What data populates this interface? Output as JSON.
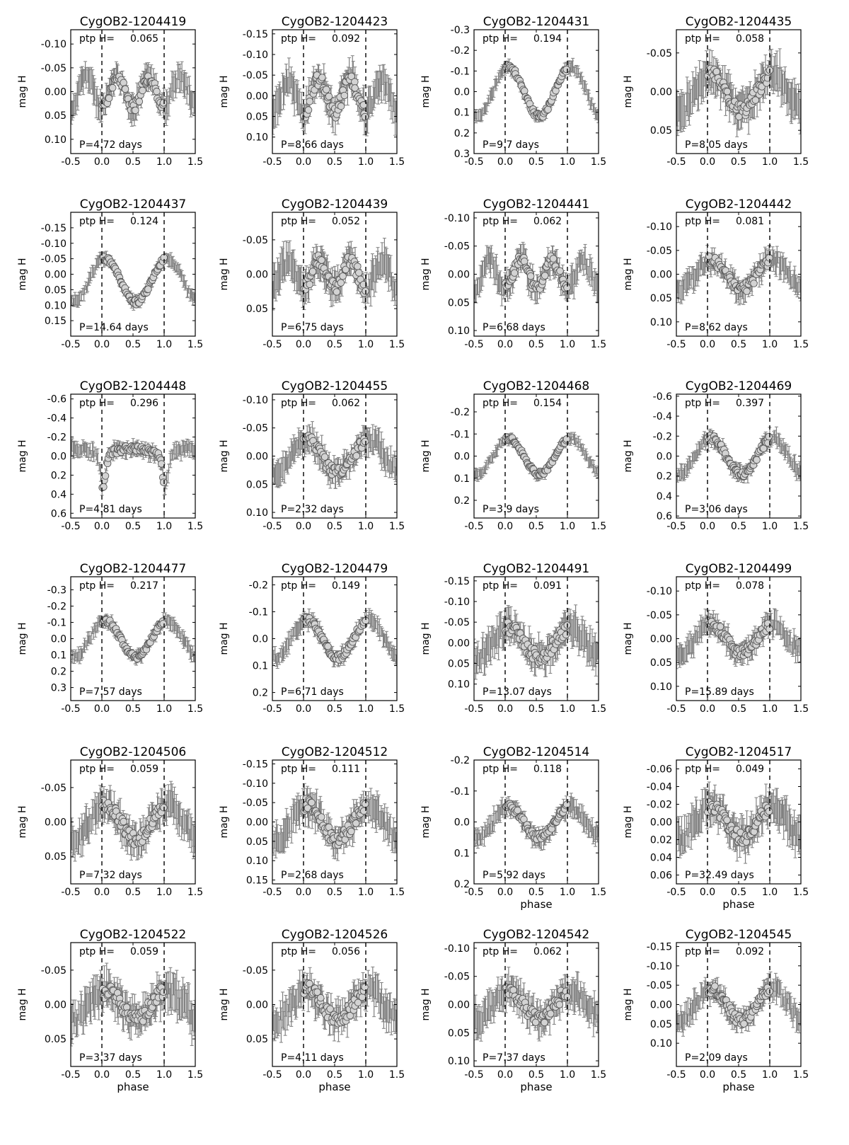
{
  "chart_data": [
    {
      "type": "scatter",
      "title": "CygOB2-1204419",
      "ptp_label": "ptp H=",
      "ptp_value": "0.065",
      "period_label": "P=4.72 days",
      "ylabel": "mag H",
      "xlabel": "",
      "ylim": [
        -0.13,
        0.13
      ],
      "yticks": [
        "-0.10",
        "-0.05",
        "0.00",
        "0.05",
        "0.10"
      ],
      "yvals": [
        -0.1,
        -0.05,
        0.0,
        0.05,
        0.1
      ],
      "shape": "double",
      "amp": 0.032,
      "center": 0.0,
      "scatter": 0.014
    },
    {
      "type": "scatter",
      "title": "CygOB2-1204423",
      "ptp_label": "ptp H=",
      "ptp_value": "0.092",
      "period_label": "P=8.66 days",
      "ylabel": "mag H",
      "xlabel": "",
      "ylim": [
        -0.16,
        0.14
      ],
      "yticks": [
        "-0.15",
        "-0.10",
        "-0.05",
        "0.00",
        "0.05",
        "0.10"
      ],
      "yvals": [
        -0.15,
        -0.1,
        -0.05,
        0.0,
        0.05,
        0.1
      ],
      "shape": "double",
      "amp": 0.04,
      "center": 0.0,
      "scatter": 0.02
    },
    {
      "type": "scatter",
      "title": "CygOB2-1204431",
      "ptp_label": "ptp H=",
      "ptp_value": "0.194",
      "period_label": "P=9.7 days",
      "ylabel": "mag H",
      "xlabel": "",
      "ylim": [
        -0.3,
        0.3
      ],
      "yticks": [
        "-0.3",
        "-0.2",
        "-0.1",
        "0.0",
        "0.1",
        "0.2",
        "0.3"
      ],
      "yvals": [
        -0.3,
        -0.2,
        -0.1,
        0.0,
        0.1,
        0.2,
        0.3
      ],
      "shape": "single",
      "amp": 0.12,
      "center": 0.0,
      "scatter": 0.015
    },
    {
      "type": "scatter",
      "title": "CygOB2-1204435",
      "ptp_label": "ptp H=",
      "ptp_value": "0.058",
      "period_label": "P=8.05 days",
      "ylabel": "mag H",
      "xlabel": "",
      "ylim": [
        -0.08,
        0.08
      ],
      "yticks": [
        "-0.05",
        "0.00",
        "0.05"
      ],
      "yvals": [
        -0.05,
        0.0,
        0.05
      ],
      "shape": "single",
      "amp": 0.025,
      "center": 0.0,
      "scatter": 0.012
    },
    {
      "type": "scatter",
      "title": "CygOB2-1204437",
      "ptp_label": "ptp H=",
      "ptp_value": "0.124",
      "period_label": "P=14.64 days",
      "ylabel": "mag H",
      "xlabel": "",
      "ylim": [
        -0.2,
        0.2
      ],
      "yticks": [
        "-0.15",
        "-0.10",
        "-0.05",
        "0.00",
        "0.05",
        "0.10",
        "0.15"
      ],
      "yvals": [
        -0.15,
        -0.1,
        -0.05,
        0.0,
        0.05,
        0.1,
        0.15
      ],
      "shape": "single",
      "amp": 0.07,
      "center": 0.02,
      "scatter": 0.01
    },
    {
      "type": "scatter",
      "title": "CygOB2-1204439",
      "ptp_label": "ptp H=",
      "ptp_value": "0.052",
      "period_label": "P=6.75 days",
      "ylabel": "mag H",
      "xlabel": "",
      "ylim": [
        -0.09,
        0.09
      ],
      "yticks": [
        "-0.05",
        "0.00",
        "0.05"
      ],
      "yvals": [
        -0.05,
        0.0,
        0.05
      ],
      "shape": "double",
      "amp": 0.02,
      "center": 0.0,
      "scatter": 0.012
    },
    {
      "type": "scatter",
      "title": "CygOB2-1204441",
      "ptp_label": "ptp H=",
      "ptp_value": "0.062",
      "period_label": "P=6.68 days",
      "ylabel": "mag H",
      "xlabel": "",
      "ylim": [
        -0.11,
        0.11
      ],
      "yticks": [
        "-0.10",
        "-0.05",
        "0.00",
        "0.05",
        "0.10"
      ],
      "yvals": [
        -0.1,
        -0.05,
        0.0,
        0.05,
        0.1
      ],
      "shape": "double",
      "amp": 0.025,
      "center": 0.0,
      "scatter": 0.012
    },
    {
      "type": "scatter",
      "title": "CygOB2-1204442",
      "ptp_label": "ptp H=",
      "ptp_value": "0.081",
      "period_label": "P=8.62 days",
      "ylabel": "mag H",
      "xlabel": "",
      "ylim": [
        -0.13,
        0.13
      ],
      "yticks": [
        "-0.10",
        "-0.05",
        "0.00",
        "0.05",
        "0.10"
      ],
      "yvals": [
        -0.1,
        -0.05,
        0.0,
        0.05,
        0.1
      ],
      "shape": "single",
      "amp": 0.03,
      "center": 0.0,
      "scatter": 0.012
    },
    {
      "type": "scatter",
      "title": "CygOB2-1204448",
      "ptp_label": "ptp H=",
      "ptp_value": "0.296",
      "period_label": "P=4.81 days",
      "ylabel": "mag H",
      "xlabel": "",
      "ylim": [
        -0.65,
        0.65
      ],
      "yticks": [
        "-0.6",
        "-0.4",
        "-0.2",
        "0.0",
        "0.2",
        "0.4",
        "0.6"
      ],
      "yvals": [
        -0.6,
        -0.4,
        -0.2,
        0.0,
        0.2,
        0.4,
        0.6
      ],
      "shape": "eclipse",
      "amp": 0.2,
      "center": 0.0,
      "scatter": 0.04
    },
    {
      "type": "scatter",
      "title": "CygOB2-1204455",
      "ptp_label": "ptp H=",
      "ptp_value": "0.062",
      "period_label": "P=2.32 days",
      "ylabel": "mag H",
      "xlabel": "",
      "ylim": [
        -0.11,
        0.11
      ],
      "yticks": [
        "-0.10",
        "-0.05",
        "0.00",
        "0.05",
        "0.10"
      ],
      "yvals": [
        -0.1,
        -0.05,
        0.0,
        0.05,
        0.1
      ],
      "shape": "single",
      "amp": 0.03,
      "center": 0.0,
      "scatter": 0.012
    },
    {
      "type": "scatter",
      "title": "CygOB2-1204468",
      "ptp_label": "ptp H=",
      "ptp_value": "0.154",
      "period_label": "P=3.9 days",
      "ylabel": "mag H",
      "xlabel": "",
      "ylim": [
        -0.28,
        0.28
      ],
      "yticks": [
        "-0.2",
        "-0.1",
        "0.0",
        "0.1",
        "0.2"
      ],
      "yvals": [
        -0.2,
        -0.1,
        0.0,
        0.1,
        0.2
      ],
      "shape": "single",
      "amp": 0.08,
      "center": 0.0,
      "scatter": 0.012
    },
    {
      "type": "scatter",
      "title": "CygOB2-1204469",
      "ptp_label": "ptp H=",
      "ptp_value": "0.397",
      "period_label": "P=3.06 days",
      "ylabel": "mag H",
      "xlabel": "",
      "ylim": [
        -0.62,
        0.62
      ],
      "yticks": [
        "-0.6",
        "-0.4",
        "-0.2",
        "0.0",
        "0.2",
        "0.4",
        "0.6"
      ],
      "yvals": [
        -0.6,
        -0.4,
        -0.2,
        0.0,
        0.2,
        0.4,
        0.6
      ],
      "shape": "single",
      "amp": 0.18,
      "center": 0.0,
      "scatter": 0.04
    },
    {
      "type": "scatter",
      "title": "CygOB2-1204477",
      "ptp_label": "ptp H=",
      "ptp_value": "0.217",
      "period_label": "P=7.57 days",
      "ylabel": "mag H",
      "xlabel": "",
      "ylim": [
        -0.38,
        0.38
      ],
      "yticks": [
        "-0.3",
        "-0.2",
        "-0.1",
        "0.0",
        "0.1",
        "0.2",
        "0.3"
      ],
      "yvals": [
        -0.3,
        -0.2,
        -0.1,
        0.0,
        0.1,
        0.2,
        0.3
      ],
      "shape": "single",
      "amp": 0.11,
      "center": 0.0,
      "scatter": 0.02
    },
    {
      "type": "scatter",
      "title": "CygOB2-1204479",
      "ptp_label": "ptp H=",
      "ptp_value": "0.149",
      "period_label": "P=6.71 days",
      "ylabel": "mag H",
      "xlabel": "",
      "ylim": [
        -0.23,
        0.23
      ],
      "yticks": [
        "-0.2",
        "-0.1",
        "0.0",
        "0.1",
        "0.2"
      ],
      "yvals": [
        -0.2,
        -0.1,
        0.0,
        0.1,
        0.2
      ],
      "shape": "single",
      "amp": 0.07,
      "center": 0.0,
      "scatter": 0.015
    },
    {
      "type": "scatter",
      "title": "CygOB2-1204491",
      "ptp_label": "ptp H=",
      "ptp_value": "0.091",
      "period_label": "P=13.07 days",
      "ylabel": "mag H",
      "xlabel": "",
      "ylim": [
        -0.16,
        0.14
      ],
      "yticks": [
        "-0.15",
        "-0.10",
        "-0.05",
        "0.00",
        "0.05",
        "0.10"
      ],
      "yvals": [
        -0.15,
        -0.1,
        -0.05,
        0.0,
        0.05,
        0.1
      ],
      "shape": "single",
      "amp": 0.035,
      "center": 0.0,
      "scatter": 0.02
    },
    {
      "type": "scatter",
      "title": "CygOB2-1204499",
      "ptp_label": "ptp H=",
      "ptp_value": "0.078",
      "period_label": "P=15.89 days",
      "ylabel": "mag H",
      "xlabel": "",
      "ylim": [
        -0.13,
        0.13
      ],
      "yticks": [
        "-0.10",
        "-0.05",
        "0.00",
        "0.05",
        "0.10"
      ],
      "yvals": [
        -0.1,
        -0.05,
        0.0,
        0.05,
        0.1
      ],
      "shape": "single",
      "amp": 0.03,
      "center": 0.0,
      "scatter": 0.012
    },
    {
      "type": "scatter",
      "title": "CygOB2-1204506",
      "ptp_label": "ptp H=",
      "ptp_value": "0.059",
      "period_label": "P=7.32 days",
      "ylabel": "mag H",
      "xlabel": "",
      "ylim": [
        -0.09,
        0.09
      ],
      "yticks": [
        "-0.05",
        "0.00",
        "0.05"
      ],
      "yvals": [
        -0.05,
        0.0,
        0.05
      ],
      "shape": "single",
      "amp": 0.025,
      "center": 0.0,
      "scatter": 0.012
    },
    {
      "type": "scatter",
      "title": "CygOB2-1204512",
      "ptp_label": "ptp H=",
      "ptp_value": "0.111",
      "period_label": "P=2.68 days",
      "ylabel": "mag H",
      "xlabel": "",
      "ylim": [
        -0.16,
        0.16
      ],
      "yticks": [
        "-0.15",
        "-0.10",
        "-0.05",
        "0.00",
        "0.05",
        "0.10",
        "0.15"
      ],
      "yvals": [
        -0.15,
        -0.1,
        -0.05,
        0.0,
        0.05,
        0.1,
        0.15
      ],
      "shape": "single",
      "amp": 0.045,
      "center": 0.0,
      "scatter": 0.02
    },
    {
      "type": "scatter",
      "title": "CygOB2-1204514",
      "ptp_label": "ptp H=",
      "ptp_value": "0.118",
      "period_label": "P=5.92 days",
      "ylabel": "mag H",
      "xlabel": "phase",
      "ylim": [
        -0.2,
        0.2
      ],
      "yticks": [
        "-0.2",
        "-0.1",
        "0.0",
        "0.1",
        "0.2"
      ],
      "yvals": [
        -0.2,
        -0.1,
        0.0,
        0.1,
        0.2
      ],
      "shape": "single",
      "amp": 0.05,
      "center": 0.0,
      "scatter": 0.015
    },
    {
      "type": "scatter",
      "title": "CygOB2-1204517",
      "ptp_label": "ptp H=",
      "ptp_value": "0.049",
      "period_label": "P=32.49 days",
      "ylabel": "mag H",
      "xlabel": "phase",
      "ylim": [
        -0.07,
        0.07
      ],
      "yticks": [
        "-0.06",
        "-0.04",
        "-0.02",
        "0.00",
        "0.02",
        "0.04",
        "0.06"
      ],
      "yvals": [
        -0.06,
        -0.04,
        -0.02,
        0.0,
        0.02,
        0.04,
        0.06
      ],
      "shape": "single",
      "amp": 0.018,
      "center": 0.0,
      "scatter": 0.01
    },
    {
      "type": "scatter",
      "title": "CygOB2-1204522",
      "ptp_label": "ptp H=",
      "ptp_value": "0.059",
      "period_label": "P=3.37 days",
      "ylabel": "mag H",
      "xlabel": "phase",
      "ylim": [
        -0.09,
        0.09
      ],
      "yticks": [
        "-0.05",
        "0.00",
        "0.05"
      ],
      "yvals": [
        -0.05,
        0.0,
        0.05
      ],
      "shape": "single",
      "amp": 0.02,
      "center": 0.0,
      "scatter": 0.014
    },
    {
      "type": "scatter",
      "title": "CygOB2-1204526",
      "ptp_label": "ptp H=",
      "ptp_value": "0.056",
      "period_label": "P=4.11 days",
      "ylabel": "mag H",
      "xlabel": "phase",
      "ylim": [
        -0.09,
        0.09
      ],
      "yticks": [
        "-0.05",
        "0.00",
        "0.05"
      ],
      "yvals": [
        -0.05,
        0.0,
        0.05
      ],
      "shape": "single",
      "amp": 0.022,
      "center": 0.0,
      "scatter": 0.012
    },
    {
      "type": "scatter",
      "title": "CygOB2-1204542",
      "ptp_label": "ptp H=",
      "ptp_value": "0.062",
      "period_label": "P=7.37 days",
      "ylabel": "mag H",
      "xlabel": "phase",
      "ylim": [
        -0.11,
        0.11
      ],
      "yticks": [
        "-0.10",
        "-0.05",
        "0.00",
        "0.05",
        "0.10"
      ],
      "yvals": [
        -0.1,
        -0.05,
        0.0,
        0.05,
        0.1
      ],
      "shape": "single",
      "amp": 0.025,
      "center": 0.0,
      "scatter": 0.014
    },
    {
      "type": "scatter",
      "title": "CygOB2-1204545",
      "ptp_label": "ptp H=",
      "ptp_value": "0.092",
      "period_label": "P=2.09 days",
      "ylabel": "mag H",
      "xlabel": "phase",
      "ylim": [
        -0.16,
        0.16
      ],
      "yticks": [
        "-0.15",
        "-0.10",
        "-0.05",
        "0.00",
        "0.05",
        "0.10"
      ],
      "yvals": [
        -0.15,
        -0.1,
        -0.05,
        0.0,
        0.05,
        0.1
      ],
      "shape": "single",
      "amp": 0.04,
      "center": 0.0,
      "scatter": 0.015
    }
  ],
  "x_axis": {
    "ticks": [
      "-0.5",
      "0.0",
      "0.5",
      "1.0",
      "1.5"
    ],
    "values": [
      -0.5,
      0.0,
      0.5,
      1.0,
      1.5
    ],
    "xlim": [
      -0.5,
      1.5
    ],
    "guides": [
      0.0,
      1.0
    ]
  },
  "colors": {
    "errorbar": "#808080",
    "marker_fill": "#d3d3d3",
    "marker_edge": "#555555",
    "axes": "#000000"
  }
}
